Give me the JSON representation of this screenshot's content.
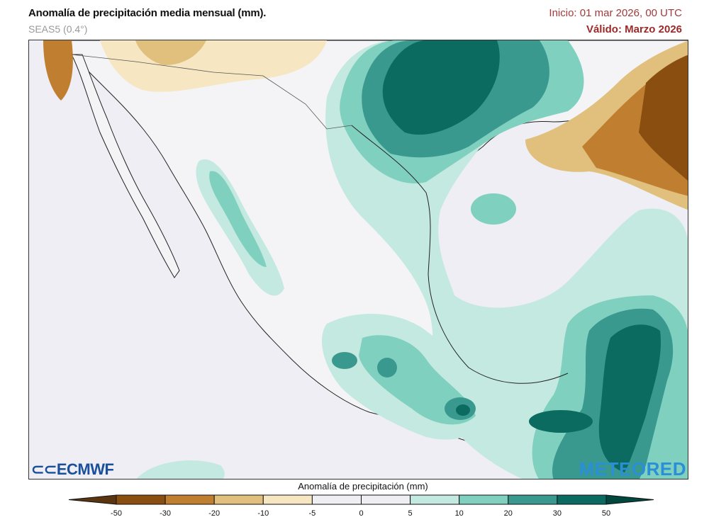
{
  "header": {
    "title": "Anomalía de precipitación media mensual (mm).",
    "model": "SEAS5 (0.4°)",
    "init": "Inicio: 01 mar 2026, 00 UTC",
    "valid": "Válido: Marzo 2026"
  },
  "colorbar": {
    "label": "Anomalía de precipitación (mm)",
    "ticks": [
      "-50",
      "-30",
      "-20",
      "-10",
      "-5",
      "0",
      "5",
      "10",
      "20",
      "30",
      "50"
    ],
    "colors": [
      "#8a4e10",
      "#c07f30",
      "#e0c07c",
      "#f6e7c2",
      "#eeeef3",
      "#eeeef3",
      "#c4e9e1",
      "#80d0c0",
      "#3a998e",
      "#0b6b60"
    ],
    "under_color": "#5a3510",
    "over_color": "#00473d"
  },
  "logos": {
    "left": "ECMWF",
    "right": "METEORED"
  },
  "map": {
    "sea_color": "#eeeef4",
    "land_color": "#f4f4f6",
    "region": "México"
  }
}
